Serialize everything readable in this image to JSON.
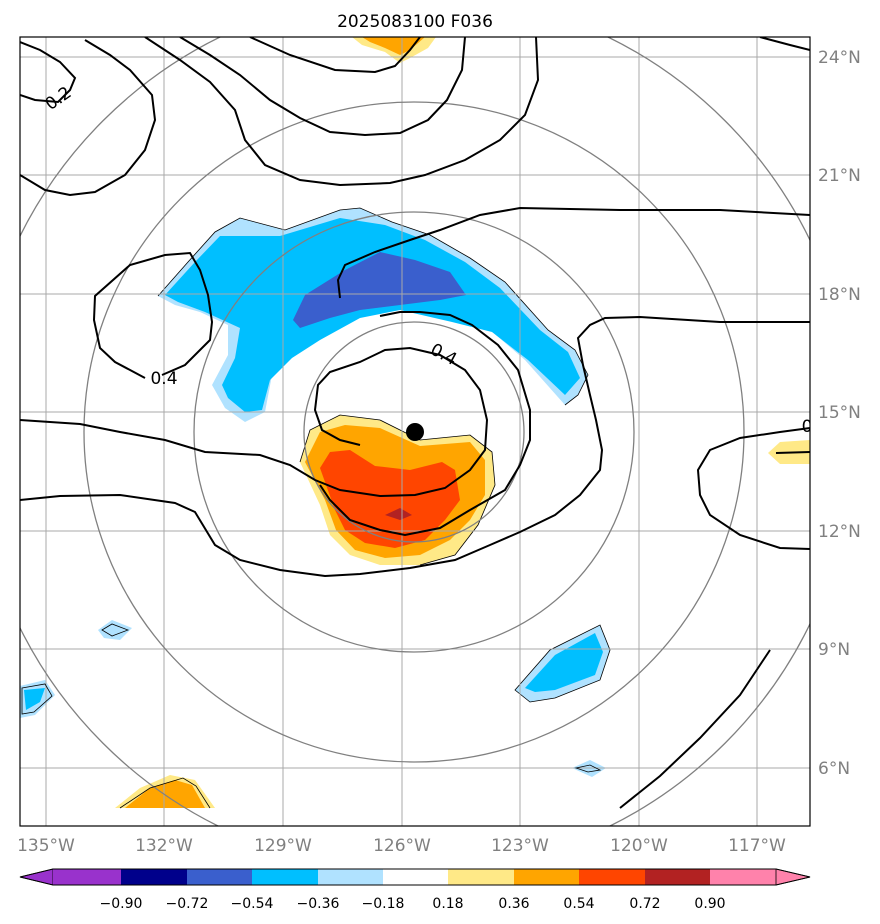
{
  "title": "2025083100 F036",
  "map": {
    "lon_labels": [
      "135°W",
      "132°W",
      "129°W",
      "126°W",
      "123°W",
      "120°W",
      "117°W"
    ],
    "lat_labels": [
      "6°N",
      "9°N",
      "12°N",
      "15°N",
      "18°N",
      "21°N",
      "24°N"
    ],
    "lon_range": [
      -135.7,
      -115.6
    ],
    "lat_range": [
      4.7,
      24.5
    ],
    "grid": true,
    "storm_center": {
      "lon": -125.7,
      "lat": 14.5
    }
  },
  "contour_labels": [
    "0.2",
    "0.4",
    "0.4",
    "0"
  ],
  "colorbar": {
    "ticks": [
      "−0.90",
      "−0.72",
      "−0.54",
      "−0.36",
      "−0.18",
      "0.18",
      "0.36",
      "0.54",
      "0.72",
      "0.90"
    ],
    "colors": {
      "under": "#9932cc",
      "bins": [
        "#00008b",
        "#3a5fcd",
        "#00bfff",
        "#b0e2ff",
        "#ffffff",
        "#ffe987",
        "#ffa500",
        "#ff4500",
        "#b22222"
      ],
      "over": "#ff82ab"
    }
  },
  "colors": {
    "grid": "#a9a9a9",
    "range_rings": "#808080",
    "contour": "#000000",
    "storm_marker": "#000000"
  }
}
